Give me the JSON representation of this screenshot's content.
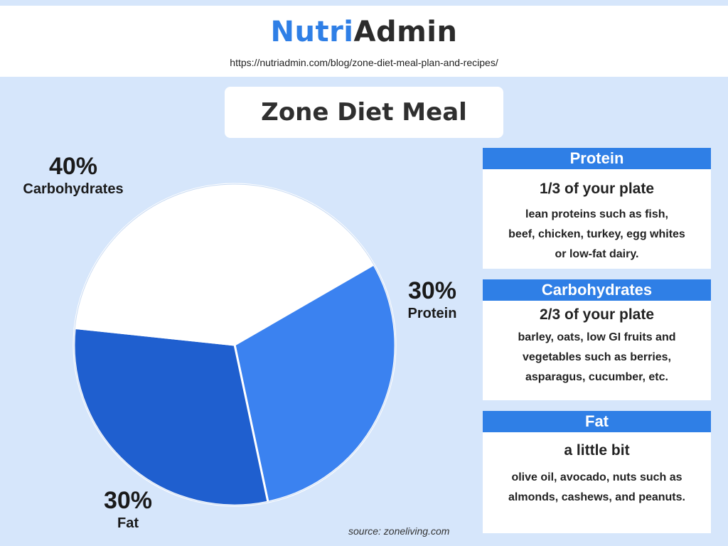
{
  "brand": {
    "part1": "Nutri",
    "part2": "Admin",
    "url": "https://nutriadmin.com/blog/zone-diet-meal-plan-and-recipes/"
  },
  "title": "Zone Diet Meal",
  "colors": {
    "accent": "#2f7fe6",
    "background": "#d6e6fb",
    "protein": "#3b82f0",
    "fat": "#1f5fcf",
    "carbs": "#ffffff"
  },
  "chart_data": {
    "type": "pie",
    "slices": [
      {
        "name": "Carbohydrates",
        "value": 40,
        "label": "40%"
      },
      {
        "name": "Protein",
        "value": 30,
        "label": "30%"
      },
      {
        "name": "Fat",
        "value": 30,
        "label": "30%"
      }
    ]
  },
  "cards": [
    {
      "heading": "Protein",
      "sub": "1/3 of your plate",
      "lines": [
        "lean proteins such as fish,",
        "beef, chicken, turkey, egg whites",
        "or low-fat dairy."
      ]
    },
    {
      "heading": "Carbohydrates",
      "sub": "2/3 of your plate",
      "lines": [
        "barley, oats, low GI fruits and",
        "vegetables such as berries,",
        "asparagus, cucumber, etc."
      ]
    },
    {
      "heading": "Fat",
      "sub": "a little bit",
      "lines": [
        "olive oil, avocado, nuts such as",
        "almonds, cashews, and peanuts."
      ]
    }
  ],
  "source": "source: zoneliving.com"
}
